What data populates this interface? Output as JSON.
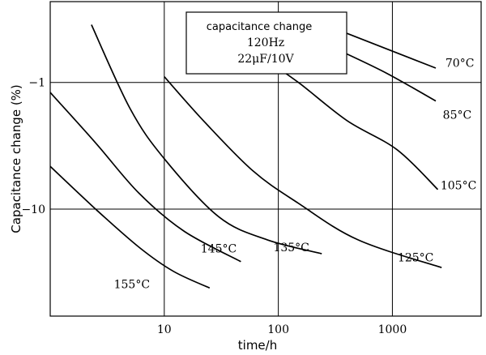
{
  "chart_data": {
    "type": "line",
    "xlabel": "time/h",
    "ylabel": "Capacitance change (%)",
    "x_scale": "log",
    "y_scale": "log",
    "xlim": [
      1,
      6000
    ],
    "ylim": [
      -0.23,
      -70
    ],
    "x_ticks": [
      {
        "value": 10,
        "label": "10"
      },
      {
        "value": 100,
        "label": "100"
      },
      {
        "value": 1000,
        "label": "1000"
      }
    ],
    "y_ticks": [
      {
        "value": -1,
        "label": "−1"
      },
      {
        "value": -10,
        "label": "−10"
      }
    ],
    "grid": true,
    "legend": {
      "placement": "top-center",
      "lines": [
        "capacitance change",
        "120Hz",
        "22μF/10V"
      ]
    },
    "series": [
      {
        "name": "70°C",
        "points": [
          [
            400,
            -0.41
          ],
          [
            2400,
            -0.77
          ]
        ]
      },
      {
        "name": "85°C",
        "points": [
          [
            360,
            -0.57
          ],
          [
            900,
            -0.85
          ],
          [
            2400,
            -1.4
          ]
        ]
      },
      {
        "name": "105°C",
        "points": [
          [
            70,
            -0.62
          ],
          [
            150,
            -1.0
          ],
          [
            400,
            -2.0
          ],
          [
            1100,
            -3.4
          ],
          [
            2500,
            -7.0
          ]
        ]
      },
      {
        "name": "125°C",
        "points": [
          [
            10,
            -0.9
          ],
          [
            22,
            -2.0
          ],
          [
            60,
            -5.0
          ],
          [
            150,
            -9.0
          ],
          [
            500,
            -17.5
          ],
          [
            2700,
            -29.0
          ]
        ]
      },
      {
        "name": "135°C",
        "points": [
          [
            2.3,
            -0.35
          ],
          [
            5,
            -1.6
          ],
          [
            10,
            -4.0
          ],
          [
            30,
            -11.5
          ],
          [
            80,
            -17.5
          ],
          [
            240,
            -22.5
          ]
        ]
      },
      {
        "name": "145°C",
        "points": [
          [
            1,
            -1.2
          ],
          [
            2.5,
            -3.0
          ],
          [
            6,
            -7.5
          ],
          [
            15,
            -15.0
          ],
          [
            47,
            -26.0
          ]
        ]
      },
      {
        "name": "155°C",
        "points": [
          [
            1,
            -4.6
          ],
          [
            2.5,
            -10.0
          ],
          [
            6,
            -20.0
          ],
          [
            12,
            -31.0
          ],
          [
            25,
            -42.0
          ]
        ]
      }
    ],
    "curve_labels": [
      {
        "text": "70°C",
        "x": 3900,
        "y": -0.7
      },
      {
        "text": "85°C",
        "x": 3700,
        "y": -1.8
      },
      {
        "text": "105°C",
        "x": 3800,
        "y": -6.5
      },
      {
        "text": "125°C",
        "x": 1600,
        "y": -24
      },
      {
        "text": "135°C",
        "x": 130,
        "y": -20
      },
      {
        "text": "145°C",
        "x": 30,
        "y": -20.5
      },
      {
        "text": "155°C",
        "x": 5.2,
        "y": -39
      }
    ]
  }
}
